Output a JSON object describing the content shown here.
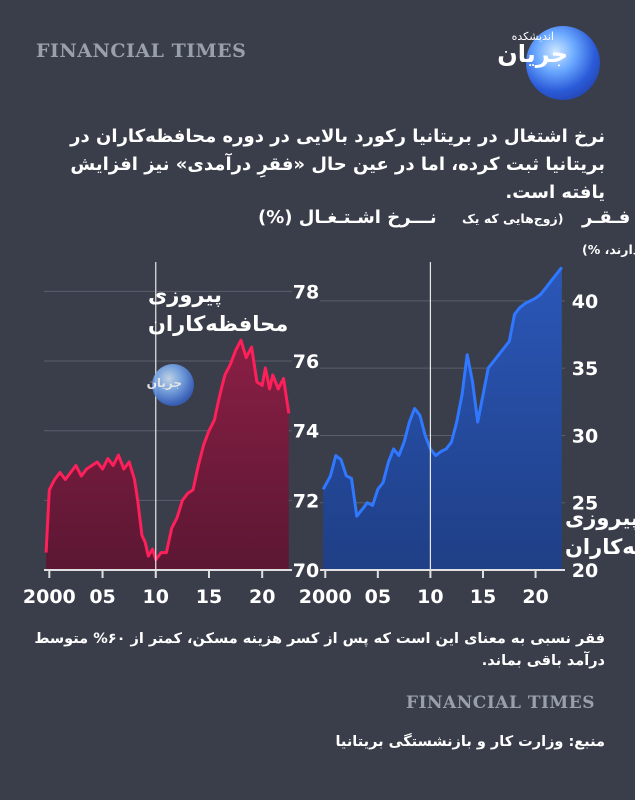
{
  "source_brand": "FINANCIAL TIMES",
  "logo": {
    "brand_top": "اندیشکده",
    "brand": "جریان"
  },
  "headline": "نرخ اشتغال در بریتانیا رکورد بالایی در دوره محافظه‌کاران در بریتانیا ثبت کرده، اما در عین حال «فقرِ درآمدی» نیز افزایش یافته است.",
  "footnote": "فقر نسبی به معنای این است که پس از کسر هزینه مسکن، کمتر از ۶۰% متوسط درآمد باقی بماند.",
  "source": "منبع: وزارت کار و بازنشستگی بریتانیا",
  "colors": {
    "employment": "#ff1f5a",
    "poverty": "#2f78ff"
  },
  "chart_data": [
    {
      "type": "area",
      "title": "نـــرخ اشـتـغـال (%)",
      "annotation": "پیروزی\nمحافظه‌کاران",
      "x_tick_labels": [
        "2000",
        "05",
        "10",
        "15",
        "20"
      ],
      "x_ticks": [
        2000,
        2005,
        2010,
        2015,
        2020
      ],
      "y_tick_labels": [
        "78",
        "76",
        "74",
        "72",
        "70"
      ],
      "y_ticks": [
        78,
        76,
        74,
        72,
        70
      ],
      "ylim": [
        70,
        78.5
      ],
      "xlim": [
        1999.5,
        2022.8
      ],
      "marker_x": 2010,
      "grid": true,
      "series": [
        {
          "x": [
            1999.7,
            2000,
            2000.5,
            2001,
            2001.5,
            2002,
            2002.5,
            2003,
            2003.5,
            2004,
            2004.5,
            2005,
            2005.5,
            2006,
            2006.5,
            2007,
            2007.5,
            2008,
            2008.3,
            2008.7,
            2009,
            2009.3,
            2009.7,
            2010,
            2010.5,
            2011,
            2011.5,
            2012,
            2012.5,
            2013,
            2013.5,
            2014,
            2014.5,
            2015,
            2015.5,
            2016,
            2016.5,
            2017,
            2017.5,
            2018,
            2018.5,
            2019,
            2019.5,
            2020,
            2020.3,
            2020.7,
            2021,
            2021.5,
            2022,
            2022.5
          ],
          "values": [
            70.5,
            72.3,
            72.6,
            72.8,
            72.6,
            72.8,
            73.0,
            72.7,
            72.9,
            73.0,
            73.1,
            72.9,
            73.2,
            73.0,
            73.3,
            72.9,
            73.1,
            72.6,
            72.0,
            71.0,
            70.8,
            70.4,
            70.6,
            70.3,
            70.5,
            70.5,
            71.2,
            71.5,
            72.0,
            72.2,
            72.3,
            73.0,
            73.6,
            74.0,
            74.3,
            75.0,
            75.6,
            75.9,
            76.3,
            76.6,
            76.1,
            76.4,
            75.4,
            75.3,
            75.8,
            75.2,
            75.6,
            75.2,
            75.5,
            74.5
          ]
        }
      ]
    },
    {
      "type": "area",
      "title": "نـــرخ فـقـر",
      "subtitle": "(زوج‌هایی که یک بزرگسال مشغول به کار دارند، %)",
      "annotation": "پیروزی\nمحافظه‌کاران",
      "x_tick_labels": [
        "2000",
        "05",
        "10",
        "15",
        "20"
      ],
      "x_ticks": [
        2000,
        2005,
        2010,
        2015,
        2020
      ],
      "y_tick_labels": [
        "40",
        "35",
        "30",
        "25",
        "20"
      ],
      "y_ticks": [
        40,
        35,
        30,
        25,
        20
      ],
      "ylim": [
        20,
        42
      ],
      "xlim": [
        1999.5,
        2022.8
      ],
      "marker_x": 2010,
      "grid": true,
      "series": [
        {
          "x": [
            1999.8,
            2000.5,
            2001,
            2001.5,
            2002,
            2002.5,
            2003,
            2003.5,
            2004,
            2004.5,
            2005,
            2005.5,
            2006,
            2006.5,
            2007,
            2007.5,
            2008,
            2008.5,
            2009,
            2009.5,
            2010,
            2010.5,
            2011,
            2011.5,
            2012,
            2012.5,
            2013,
            2013.5,
            2014,
            2014.5,
            2015,
            2015.5,
            2016,
            2016.5,
            2017,
            2017.5,
            2018,
            2018.5,
            2019,
            2019.5,
            2020,
            2020.5,
            2021,
            2021.5,
            2022,
            2022.5
          ],
          "values": [
            26.0,
            27.0,
            28.5,
            28.2,
            27.0,
            26.8,
            24.0,
            24.5,
            25.0,
            24.8,
            26.0,
            26.5,
            28.0,
            29.0,
            28.5,
            29.5,
            31.0,
            32.0,
            31.5,
            30.0,
            29.0,
            28.5,
            28.8,
            29.0,
            29.5,
            31.0,
            33.0,
            36.0,
            34.0,
            31.0,
            33.0,
            35.0,
            35.5,
            36.0,
            36.5,
            37.0,
            39.0,
            39.5,
            39.8,
            40.0,
            40.2,
            40.5,
            41.0,
            41.5,
            42.0,
            42.5
          ]
        }
      ]
    }
  ]
}
